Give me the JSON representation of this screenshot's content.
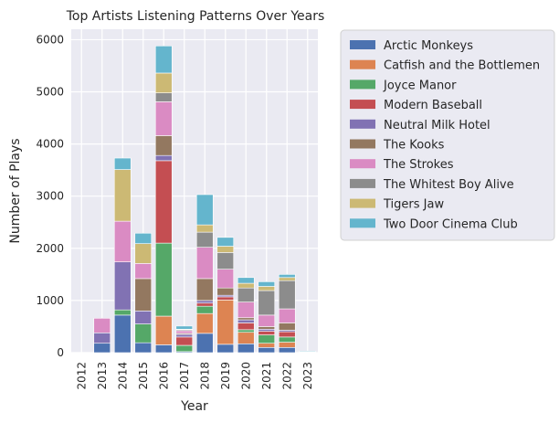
{
  "chart_data": {
    "type": "bar",
    "stacked": true,
    "title": "Top Artists Listening Patterns Over Years",
    "xlabel": "Year",
    "ylabel": "Number of Plays",
    "ylim": [
      0,
      6200
    ],
    "yticks": [
      0,
      1000,
      2000,
      3000,
      4000,
      5000,
      6000
    ],
    "grid": true,
    "legend_position": "outside-right",
    "categories": [
      "2012",
      "2013",
      "2014",
      "2015",
      "2016",
      "2017",
      "2018",
      "2019",
      "2020",
      "2021",
      "2022",
      "2023"
    ],
    "series": [
      {
        "name": "Arctic Monkeys",
        "color": "#4c72b0",
        "values": [
          5,
          180,
          720,
          190,
          150,
          20,
          370,
          160,
          170,
          100,
          100,
          5
        ]
      },
      {
        "name": "Catfish and the Bottlemen",
        "color": "#dd8452",
        "values": [
          0,
          0,
          0,
          0,
          550,
          0,
          380,
          850,
          220,
          80,
          100,
          0
        ]
      },
      {
        "name": "Joyce Manor",
        "color": "#55a868",
        "values": [
          0,
          0,
          100,
          360,
          1400,
          120,
          140,
          0,
          50,
          160,
          100,
          0
        ]
      },
      {
        "name": "Modern Baseball",
        "color": "#c44e52",
        "values": [
          0,
          0,
          0,
          0,
          1580,
          160,
          60,
          60,
          130,
          70,
          100,
          0
        ]
      },
      {
        "name": "Neutral Milk Hotel",
        "color": "#8172b3",
        "values": [
          0,
          200,
          920,
          250,
          100,
          50,
          50,
          30,
          60,
          40,
          30,
          0
        ]
      },
      {
        "name": "The Kooks",
        "color": "#937860",
        "values": [
          0,
          0,
          0,
          620,
          380,
          20,
          420,
          140,
          40,
          50,
          140,
          0
        ]
      },
      {
        "name": "The Strokes",
        "color": "#da8bc3",
        "values": [
          0,
          280,
          780,
          290,
          650,
          50,
          600,
          360,
          300,
          220,
          270,
          0
        ]
      },
      {
        "name": "The Whitest Boy Alive",
        "color": "#8c8c8c",
        "values": [
          0,
          0,
          0,
          0,
          170,
          20,
          290,
          320,
          270,
          470,
          540,
          10
        ]
      },
      {
        "name": "Tigers Jaw",
        "color": "#ccb974",
        "values": [
          0,
          0,
          990,
          380,
          380,
          10,
          140,
          120,
          90,
          80,
          60,
          0
        ]
      },
      {
        "name": "Two Door Cinema Club",
        "color": "#64b5cd",
        "values": [
          0,
          0,
          220,
          200,
          520,
          60,
          580,
          170,
          110,
          90,
          60,
          15
        ]
      }
    ]
  }
}
